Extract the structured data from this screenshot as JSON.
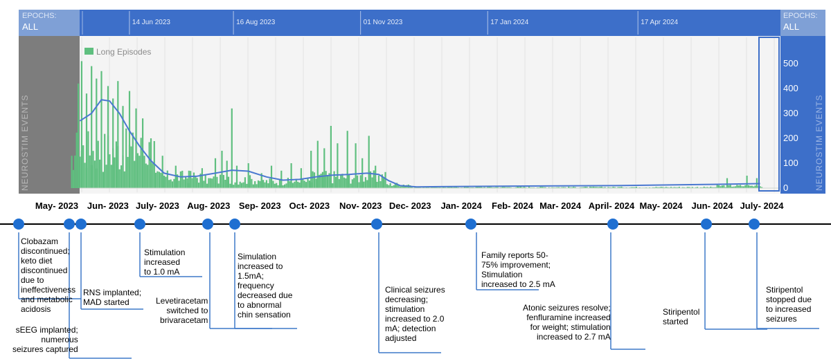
{
  "chart_data": {
    "type": "bar",
    "title": "",
    "header": {
      "left_label": [
        "EPOCHS:",
        "ALL"
      ],
      "right_label": [
        "EPOCHS:",
        "ALL"
      ],
      "date_ticks": [
        "14 Jun 2023",
        "16 Aug 2023",
        "01 Nov 2023",
        "17 Jan 2024",
        "17 Apr 2024"
      ]
    },
    "ylabel": "NEUROSTIM EVENTS",
    "ylim": [
      0,
      550
    ],
    "yticks": [
      0,
      100,
      200,
      300,
      400,
      500
    ],
    "legend": {
      "label": "Long Episodes",
      "placement": "top-left"
    },
    "colors": {
      "bars": "#5fbf7f",
      "trend": "#4a78d0",
      "header": "#3d6fc9",
      "left_panel": "#7d7d7d",
      "right_axis_panel": "#3d6fc9"
    },
    "month_labels": [
      "May- 2023",
      "Jun- 2023",
      "July- 2023",
      "Aug- 2023",
      "Sep- 2023",
      "Oct- 2023",
      "Nov- 2023",
      "Dec- 2023",
      "Jan- 2024",
      "Feb- 2024",
      "Mar- 2024",
      "April- 2024",
      "May- 2024",
      "Jun- 2024",
      "July- 2024"
    ],
    "x_range": [
      "2023-05-01",
      "2024-07-01"
    ],
    "series": [
      {
        "type": "bar",
        "name": "Long Episodes",
        "peaks": [
          {
            "date": "2023-05-10",
            "value": 130
          },
          {
            "date": "2023-05-14",
            "value": 420
          },
          {
            "date": "2023-05-16",
            "value": 510
          },
          {
            "date": "2023-05-19",
            "value": 380
          },
          {
            "date": "2023-05-22",
            "value": 490
          },
          {
            "date": "2023-05-25",
            "value": 440
          },
          {
            "date": "2023-05-28",
            "value": 470
          },
          {
            "date": "2023-06-01",
            "value": 410
          },
          {
            "date": "2023-06-04",
            "value": 360
          },
          {
            "date": "2023-06-07",
            "value": 430
          },
          {
            "date": "2023-06-10",
            "value": 330
          },
          {
            "date": "2023-06-14",
            "value": 390
          },
          {
            "date": "2023-06-18",
            "value": 320
          },
          {
            "date": "2023-06-22",
            "value": 280
          },
          {
            "date": "2023-06-27",
            "value": 200
          },
          {
            "date": "2023-07-04",
            "value": 130
          },
          {
            "date": "2023-07-12",
            "value": 90
          },
          {
            "date": "2023-07-20",
            "value": 70
          },
          {
            "date": "2023-07-28",
            "value": 80
          },
          {
            "date": "2023-08-05",
            "value": 120
          },
          {
            "date": "2023-08-09",
            "value": 150
          },
          {
            "date": "2023-08-12",
            "value": 110
          },
          {
            "date": "2023-08-15",
            "value": 320
          },
          {
            "date": "2023-08-18",
            "value": 90
          },
          {
            "date": "2023-08-25",
            "value": 100
          },
          {
            "date": "2023-09-02",
            "value": 60
          },
          {
            "date": "2023-09-08",
            "value": 90
          },
          {
            "date": "2023-09-14",
            "value": 70
          },
          {
            "date": "2023-09-20",
            "value": 100
          },
          {
            "date": "2023-09-26",
            "value": 80
          },
          {
            "date": "2023-10-02",
            "value": 150
          },
          {
            "date": "2023-10-06",
            "value": 190
          },
          {
            "date": "2023-10-10",
            "value": 160
          },
          {
            "date": "2023-10-14",
            "value": 250
          },
          {
            "date": "2023-10-18",
            "value": 180
          },
          {
            "date": "2023-10-24",
            "value": 230
          },
          {
            "date": "2023-10-29",
            "value": 180
          },
          {
            "date": "2023-11-02",
            "value": 120
          },
          {
            "date": "2023-11-06",
            "value": 210
          },
          {
            "date": "2023-11-10",
            "value": 90
          },
          {
            "date": "2023-11-15",
            "value": 40
          },
          {
            "date": "2023-11-22",
            "value": 20
          },
          {
            "date": "2024-06-10",
            "value": 40
          },
          {
            "date": "2024-06-22",
            "value": 50
          },
          {
            "date": "2024-06-28",
            "value": 40
          }
        ]
      },
      {
        "type": "line",
        "points": [
          {
            "date": "2023-05-15",
            "value": 270
          },
          {
            "date": "2023-05-22",
            "value": 300
          },
          {
            "date": "2023-05-28",
            "value": 355
          },
          {
            "date": "2023-06-02",
            "value": 350
          },
          {
            "date": "2023-06-08",
            "value": 300
          },
          {
            "date": "2023-06-14",
            "value": 230
          },
          {
            "date": "2023-06-20",
            "value": 170
          },
          {
            "date": "2023-06-27",
            "value": 110
          },
          {
            "date": "2023-07-05",
            "value": 60
          },
          {
            "date": "2023-07-15",
            "value": 45
          },
          {
            "date": "2023-07-25",
            "value": 48
          },
          {
            "date": "2023-08-05",
            "value": 60
          },
          {
            "date": "2023-08-15",
            "value": 72
          },
          {
            "date": "2023-08-25",
            "value": 68
          },
          {
            "date": "2023-09-05",
            "value": 45
          },
          {
            "date": "2023-09-15",
            "value": 32
          },
          {
            "date": "2023-09-25",
            "value": 35
          },
          {
            "date": "2023-10-05",
            "value": 45
          },
          {
            "date": "2023-10-15",
            "value": 52
          },
          {
            "date": "2023-10-25",
            "value": 55
          },
          {
            "date": "2023-11-05",
            "value": 60
          },
          {
            "date": "2023-11-12",
            "value": 55
          },
          {
            "date": "2023-11-18",
            "value": 30
          },
          {
            "date": "2023-11-25",
            "value": 10
          },
          {
            "date": "2023-12-05",
            "value": 5
          },
          {
            "date": "2024-02-01",
            "value": 8
          },
          {
            "date": "2024-04-01",
            "value": 10
          },
          {
            "date": "2024-06-01",
            "value": 15
          },
          {
            "date": "2024-06-30",
            "value": 18
          }
        ]
      }
    ]
  },
  "timeline": {
    "events": [
      {
        "date": "2023-05-01",
        "lines": [
          "Clobazam",
          "discontinued;",
          "keto diet",
          "discontinued",
          "due to",
          "ineffectiveness",
          "and metabolic",
          "acidosis"
        ]
      },
      {
        "date": "2023-05-24",
        "lines": [
          "sEEG implanted;",
          "numerous",
          "seizures captured"
        ]
      },
      {
        "date": "2023-05-31",
        "lines": [
          "RNS implanted;",
          "MAD started"
        ]
      },
      {
        "date": "2023-07-01",
        "lines": [
          "Stimulation",
          "increased",
          "to 1.0 mA"
        ]
      },
      {
        "date": "2023-08-01",
        "lines": [
          "Levetiracetam",
          "switched to",
          "brivaracetam"
        ]
      },
      {
        "date": "2023-08-13",
        "lines": [
          "Simulation",
          "increased to",
          "1.5mA;",
          "frequency",
          "decreased due",
          "to abnormal",
          "chin sensation"
        ]
      },
      {
        "date": "2023-11-15",
        "lines": [
          "Clinical seizures",
          "decreasing;",
          "stimulation",
          "increased to 2.0",
          "mA; detection",
          "adjusted"
        ]
      },
      {
        "date": "2024-01-15",
        "lines": [
          "Family reports 50-",
          "75% improvement;",
          "Stimulation",
          "increased  to 2.5 mA"
        ]
      },
      {
        "date": "2024-04-15",
        "lines": [
          "Atonic seizures resolve;",
          "fenfluramine increased",
          "for weight; stimulation",
          "increased to 2.7 mA"
        ]
      },
      {
        "date": "2024-06-10",
        "lines": [
          "Stiripentol",
          "started"
        ]
      },
      {
        "date": "2024-07-01",
        "lines": [
          "Stiripentol",
          "stopped due",
          "to increased",
          "seizures"
        ]
      }
    ]
  }
}
